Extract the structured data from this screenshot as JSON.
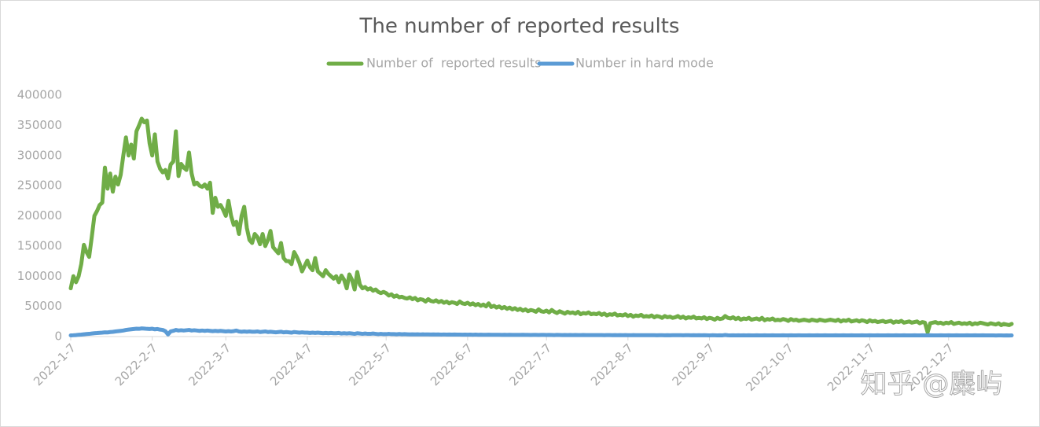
{
  "chart_data": {
    "type": "line",
    "title": "The number of reported results",
    "watermark": "知乎 @麋屿",
    "legend": "top",
    "categories": [
      "2022-1-7",
      null,
      null,
      null,
      null,
      null,
      null,
      null,
      null,
      null,
      null,
      null,
      null,
      null,
      null,
      null,
      null,
      null,
      null,
      null,
      null,
      null,
      null,
      null,
      null,
      null,
      null,
      null,
      null,
      null,
      null,
      "2022-2-7",
      null,
      null,
      null,
      null,
      null,
      null,
      null,
      null,
      null,
      null,
      null,
      null,
      null,
      null,
      null,
      null,
      null,
      null,
      null,
      null,
      null,
      null,
      null,
      null,
      null,
      null,
      null,
      "2022-3-7",
      null,
      null,
      null,
      null,
      null,
      null,
      null,
      null,
      null,
      null,
      null,
      null,
      null,
      null,
      null,
      null,
      null,
      null,
      null,
      null,
      null,
      null,
      null,
      null,
      null,
      null,
      null,
      null,
      null,
      null,
      "2022-4-7",
      null,
      null,
      null,
      null,
      null,
      null,
      null,
      null,
      null,
      null,
      null,
      null,
      null,
      null,
      null,
      null,
      null,
      null,
      null,
      null,
      null,
      null,
      null,
      null,
      null,
      null,
      null,
      null,
      null,
      "2022-5-7",
      null,
      null,
      null,
      null,
      null,
      null,
      null,
      null,
      null,
      null,
      null,
      null,
      null,
      null,
      null,
      null,
      null,
      null,
      null,
      null,
      null,
      null,
      null,
      null,
      null,
      null,
      null,
      null,
      null,
      null,
      "2022-6-7",
      null,
      null,
      null,
      null,
      null,
      null,
      null,
      null,
      null,
      null,
      null,
      null,
      null,
      null,
      null,
      null,
      null,
      null,
      null,
      null,
      null,
      null,
      null,
      null,
      null,
      null,
      null,
      null,
      null,
      "2022-7-7",
      null,
      null,
      null,
      null,
      null,
      null,
      null,
      null,
      null,
      null,
      null,
      null,
      null,
      null,
      null,
      null,
      null,
      null,
      null,
      null,
      null,
      null,
      null,
      null,
      null,
      null,
      null,
      null,
      null,
      null,
      "2022-8-7",
      null,
      null,
      null,
      null,
      null,
      null,
      null,
      null,
      null,
      null,
      null,
      null,
      null,
      null,
      null,
      null,
      null,
      null,
      null,
      null,
      null,
      null,
      null,
      null,
      null,
      null,
      null,
      null,
      null,
      null,
      "2022-9-7",
      null,
      null,
      null,
      null,
      null,
      null,
      null,
      null,
      null,
      null,
      null,
      null,
      null,
      null,
      null,
      null,
      null,
      null,
      null,
      null,
      null,
      null,
      null,
      null,
      null,
      null,
      null,
      null,
      null,
      "2022-10-7",
      null,
      null,
      null,
      null,
      null,
      null,
      null,
      null,
      null,
      null,
      null,
      null,
      null,
      null,
      null,
      null,
      null,
      null,
      null,
      null,
      null,
      null,
      null,
      null,
      null,
      null,
      null,
      null,
      null,
      null,
      "2022-11-7",
      null,
      null,
      null,
      null,
      null,
      null,
      null,
      null,
      null,
      null,
      null,
      null,
      null,
      null,
      null,
      null,
      null,
      null,
      null,
      null,
      null,
      null,
      null,
      null,
      null,
      null,
      null,
      null,
      null,
      "2022-12-7",
      null,
      null,
      null,
      null,
      null,
      null,
      null,
      null,
      null,
      null,
      null,
      null,
      null,
      null,
      null,
      null,
      null,
      null,
      null,
      null,
      null,
      null,
      null,
      null
    ],
    "ylim": [
      0,
      400000
    ],
    "yticks": [
      0,
      50000,
      100000,
      150000,
      200000,
      250000,
      300000,
      350000,
      400000
    ],
    "series": [
      {
        "name": "Number of  reported results",
        "color": "#70ad47",
        "values": [
          80000,
          100000,
          90000,
          100000,
          120000,
          152000,
          140000,
          132000,
          165000,
          200000,
          208000,
          218000,
          222000,
          280000,
          245000,
          270000,
          240000,
          265000,
          252000,
          268000,
          300000,
          330000,
          300000,
          318000,
          295000,
          340000,
          350000,
          361000,
          355000,
          358000,
          320000,
          300000,
          335000,
          290000,
          278000,
          272000,
          276000,
          262000,
          285000,
          290000,
          340000,
          266000,
          286000,
          280000,
          276000,
          305000,
          270000,
          252000,
          255000,
          250000,
          248000,
          252000,
          245000,
          255000,
          205000,
          230000,
          215000,
          218000,
          210000,
          200000,
          225000,
          200000,
          185000,
          190000,
          170000,
          200000,
          215000,
          180000,
          160000,
          155000,
          170000,
          165000,
          153000,
          170000,
          150000,
          160000,
          175000,
          148000,
          143000,
          138000,
          155000,
          130000,
          125000,
          125000,
          120000,
          140000,
          132000,
          122000,
          108000,
          117000,
          126000,
          115000,
          110000,
          130000,
          108000,
          104000,
          100000,
          110000,
          104000,
          100000,
          96000,
          100000,
          90000,
          101000,
          94000,
          80000,
          103000,
          94000,
          78000,
          107000,
          86000,
          80000,
          82000,
          78000,
          80000,
          76000,
          78000,
          74000,
          72000,
          74000,
          72000,
          68000,
          70000,
          66000,
          68000,
          65000,
          66000,
          64000,
          63000,
          65000,
          62000,
          64000,
          60000,
          62000,
          61000,
          58000,
          62000,
          59000,
          58000,
          60000,
          57000,
          59000,
          56000,
          58000,
          55000,
          57000,
          56000,
          54000,
          58000,
          55000,
          54000,
          56000,
          53000,
          55000,
          52000,
          54000,
          51000,
          53000,
          50000,
          55000,
          49000,
          51000,
          48000,
          50000,
          47000,
          49000,
          46000,
          48000,
          45000,
          47000,
          44000,
          46000,
          43000,
          45000,
          42000,
          44000,
          43000,
          41000,
          45000,
          42000,
          41000,
          43000,
          40000,
          44000,
          41000,
          39000,
          42000,
          40000,
          38000,
          41000,
          39000,
          40000,
          38000,
          41000,
          37000,
          39000,
          38000,
          40000,
          37000,
          38000,
          37000,
          39000,
          36000,
          38000,
          35000,
          37000,
          36000,
          38000,
          35000,
          36000,
          35000,
          37000,
          34000,
          36000,
          33000,
          35000,
          34000,
          36000,
          33000,
          34000,
          33000,
          35000,
          32000,
          34000,
          33000,
          31000,
          34000,
          32000,
          33000,
          31000,
          32000,
          34000,
          31000,
          33000,
          30000,
          32000,
          31000,
          33000,
          30000,
          31000,
          30000,
          32000,
          29000,
          31000,
          30000,
          28000,
          31000,
          29000,
          30000,
          34000,
          31000,
          30000,
          32000,
          29000,
          31000,
          28000,
          30000,
          29000,
          31000,
          28000,
          29000,
          30000,
          28000,
          31000,
          27000,
          29000,
          28000,
          30000,
          27000,
          28000,
          27000,
          29000,
          28000,
          26000,
          29000,
          27000,
          28000,
          26000,
          27000,
          28000,
          27000,
          26000,
          28000,
          27000,
          26000,
          28000,
          27000,
          26000,
          27000,
          28000,
          27000,
          26000,
          28000,
          25000,
          27000,
          26000,
          28000,
          25000,
          26000,
          27000,
          25000,
          27000,
          26000,
          24000,
          27000,
          25000,
          26000,
          24000,
          25000,
          26000,
          24000,
          25000,
          26000,
          23000,
          25000,
          24000,
          26000,
          23000,
          24000,
          25000,
          23000,
          24000,
          25000,
          22000,
          24000,
          23000,
          7000,
          22000,
          23000,
          24000,
          22000,
          23000,
          21000,
          23000,
          22000,
          24000,
          21000,
          22000,
          23000,
          21000,
          22000,
          21000,
          23000,
          20000,
          22000,
          21000,
          23000,
          22000,
          21000,
          20000,
          22000,
          21000,
          20000,
          22000,
          19000,
          21000,
          20000,
          19000,
          21000
        ]
      },
      {
        "name": "Number in hard mode",
        "color": "#5b9bd5",
        "values": [
          2000,
          2200,
          2500,
          3000,
          3300,
          3800,
          4200,
          4500,
          5000,
          5500,
          5800,
          6200,
          6500,
          7000,
          6800,
          7500,
          7800,
          8500,
          9000,
          9500,
          10000,
          11000,
          11500,
          12000,
          12500,
          13000,
          12800,
          13500,
          13200,
          12800,
          12500,
          13000,
          12000,
          12500,
          11500,
          11000,
          9000,
          3500,
          8500,
          9500,
          11000,
          10000,
          10500,
          10000,
          10500,
          11000,
          10000,
          10500,
          10000,
          9500,
          10000,
          9500,
          10000,
          9500,
          9000,
          9500,
          9000,
          9500,
          9000,
          8500,
          9000,
          8500,
          9000,
          10000,
          8500,
          8000,
          8500,
          8000,
          8500,
          8000,
          8000,
          8500,
          7500,
          8000,
          8500,
          7500,
          8000,
          7500,
          7000,
          7500,
          8000,
          7000,
          7500,
          7000,
          6500,
          7500,
          7000,
          6500,
          7000,
          6500,
          6500,
          6000,
          6500,
          6000,
          6500,
          6000,
          5500,
          6000,
          5500,
          6000,
          5500,
          5500,
          6000,
          5000,
          5500,
          5000,
          5500,
          5000,
          4500,
          5500,
          5000,
          4500,
          5000,
          4500,
          4500,
          5000,
          4500,
          4000,
          4500,
          4000,
          4000,
          4500,
          4000,
          4000,
          3800,
          4200,
          3800,
          4000,
          3800,
          3600,
          3800,
          3600,
          3800,
          3500,
          3700,
          3500,
          3600,
          3400,
          3600,
          3400,
          3500,
          3300,
          3500,
          3300,
          3400,
          3200,
          3400,
          3200,
          3300,
          3100,
          3200,
          3100,
          3300,
          3000,
          3200,
          3000,
          3100,
          3000,
          2900,
          3100,
          3000,
          2900,
          3000,
          2900,
          2800,
          3000,
          2800,
          2900,
          2800,
          2700,
          2800,
          2700,
          2900,
          2700,
          2800,
          2600,
          2800,
          2700,
          2600,
          2800,
          2700,
          2600,
          2700,
          2600,
          2500,
          2700,
          2600,
          2500,
          2600,
          2500,
          2600,
          2500,
          2600,
          2400,
          2500,
          2600,
          2400,
          2500,
          2400,
          2500,
          2400,
          2500,
          2400,
          2300,
          2500,
          2400,
          2300,
          2400,
          2300,
          2400,
          2300,
          2400,
          2300,
          2200,
          2400,
          2300,
          2200,
          2300,
          2200,
          2300,
          2200,
          2300,
          2200,
          2100,
          2300,
          2200,
          2100,
          2200,
          2100,
          2200,
          2200,
          2300,
          2200,
          2100,
          2300,
          2200,
          2100,
          2200,
          2100,
          2200,
          2100,
          2200,
          2100,
          2000,
          2200,
          2100,
          2000,
          2100,
          2000,
          2600,
          2100,
          2000,
          2100,
          2000,
          2100,
          2000,
          2100,
          2000,
          2100,
          2000,
          2000,
          2100,
          1900,
          2000,
          2100,
          1900,
          2000,
          2100,
          1900,
          2000,
          2000,
          2100,
          1900,
          2000,
          2100,
          1900,
          2000,
          2100,
          1900,
          2000,
          2000,
          2100,
          1900,
          2000,
          2100,
          1900,
          2000,
          2100,
          1900,
          2000,
          2000,
          2100,
          1900,
          2000,
          2100,
          1900,
          2000,
          2100,
          1900,
          2000,
          2000,
          2100,
          1900,
          2000,
          2100,
          1900,
          2000,
          2100,
          1900,
          2000,
          2000,
          2100,
          1900,
          2000,
          2100,
          1900,
          2000,
          2100,
          1900,
          2000,
          2000,
          2100,
          1900,
          2000,
          2100,
          1900,
          2000,
          2100,
          1900,
          2000,
          2000,
          2100,
          1900,
          2000,
          2100,
          1900,
          2000,
          2100,
          1900,
          2000,
          2000,
          2100,
          1900,
          2000,
          2100,
          1900,
          2000,
          2100,
          1900,
          2000,
          1900,
          2000,
          1800,
          1900,
          2000,
          1800,
          1900,
          1800,
          1900
        ]
      }
    ]
  }
}
